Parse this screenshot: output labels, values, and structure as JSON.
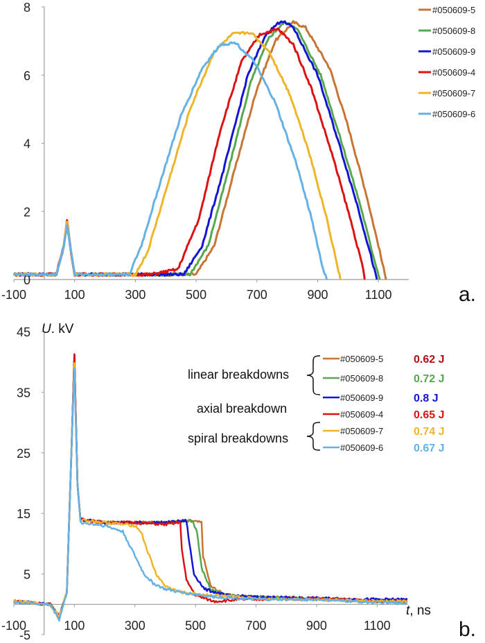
{
  "panel_a": {
    "label": "a.",
    "chart_data": {
      "type": "line",
      "xlabel": "",
      "ylabel": "",
      "xlim": [
        -100,
        1200
      ],
      "ylim": [
        0,
        8
      ],
      "x_ticks": [
        "-100",
        "100",
        "300",
        "500",
        "700",
        "900",
        "1100"
      ],
      "y_ticks": [
        "0",
        "2",
        "4",
        "6",
        "8"
      ],
      "grid": false,
      "legend_position": "right",
      "series": [
        {
          "name": "#050609-5",
          "color": "#c87533",
          "points": [
            [
              -100,
              0.15
            ],
            [
              40,
              0.15
            ],
            [
              65,
              1.0
            ],
            [
              75,
              1.7
            ],
            [
              85,
              1.0
            ],
            [
              100,
              0.15
            ],
            [
              500,
              0.15
            ],
            [
              560,
              1.0
            ],
            [
              620,
              3.0
            ],
            [
              700,
              5.6
            ],
            [
              760,
              7.0
            ],
            [
              820,
              7.55
            ],
            [
              860,
              7.4
            ],
            [
              940,
              6.2
            ],
            [
              1000,
              4.5
            ],
            [
              1060,
              2.5
            ],
            [
              1100,
              1.0
            ],
            [
              1125,
              0.0
            ]
          ]
        },
        {
          "name": "#050609-8",
          "color": "#55a84d",
          "points": [
            [
              -100,
              0.15
            ],
            [
              40,
              0.15
            ],
            [
              65,
              1.0
            ],
            [
              75,
              1.7
            ],
            [
              85,
              1.0
            ],
            [
              100,
              0.15
            ],
            [
              480,
              0.15
            ],
            [
              540,
              1.0
            ],
            [
              600,
              3.0
            ],
            [
              680,
              5.8
            ],
            [
              740,
              7.1
            ],
            [
              790,
              7.55
            ],
            [
              830,
              7.4
            ],
            [
              910,
              6.0
            ],
            [
              980,
              4.0
            ],
            [
              1040,
              2.2
            ],
            [
              1080,
              0.8
            ],
            [
              1105,
              0.0
            ]
          ]
        },
        {
          "name": "#050609-9",
          "color": "#1414d4",
          "points": [
            [
              -100,
              0.15
            ],
            [
              40,
              0.15
            ],
            [
              65,
              1.0
            ],
            [
              75,
              1.7
            ],
            [
              85,
              1.0
            ],
            [
              100,
              0.15
            ],
            [
              460,
              0.15
            ],
            [
              520,
              1.0
            ],
            [
              590,
              3.2
            ],
            [
              670,
              6.0
            ],
            [
              730,
              7.2
            ],
            [
              780,
              7.6
            ],
            [
              820,
              7.4
            ],
            [
              900,
              6.0
            ],
            [
              970,
              4.0
            ],
            [
              1030,
              2.2
            ],
            [
              1075,
              0.7
            ],
            [
              1095,
              0.0
            ]
          ]
        },
        {
          "name": "#050609-4",
          "color": "#dd1111",
          "points": [
            [
              -100,
              0.15
            ],
            [
              40,
              0.15
            ],
            [
              65,
              1.0
            ],
            [
              75,
              1.75
            ],
            [
              85,
              1.0
            ],
            [
              100,
              0.15
            ],
            [
              350,
              0.15
            ],
            [
              440,
              0.3
            ],
            [
              510,
              1.8
            ],
            [
              580,
              4.4
            ],
            [
              650,
              6.4
            ],
            [
              710,
              7.2
            ],
            [
              770,
              7.35
            ],
            [
              820,
              6.9
            ],
            [
              880,
              5.6
            ],
            [
              950,
              3.6
            ],
            [
              1010,
              1.7
            ],
            [
              1050,
              0.3
            ],
            [
              1055,
              0.0
            ]
          ]
        },
        {
          "name": "#050609-7",
          "color": "#f0b428",
          "points": [
            [
              -100,
              0.15
            ],
            [
              40,
              0.15
            ],
            [
              65,
              1.0
            ],
            [
              75,
              1.7
            ],
            [
              85,
              1.0
            ],
            [
              100,
              0.15
            ],
            [
              300,
              0.15
            ],
            [
              340,
              0.8
            ],
            [
              400,
              2.6
            ],
            [
              480,
              5.0
            ],
            [
              560,
              6.7
            ],
            [
              620,
              7.2
            ],
            [
              680,
              7.25
            ],
            [
              740,
              6.7
            ],
            [
              810,
              5.4
            ],
            [
              870,
              3.8
            ],
            [
              930,
              1.8
            ],
            [
              965,
              0.4
            ],
            [
              975,
              0.0
            ]
          ]
        },
        {
          "name": "#050609-6",
          "color": "#64b1e6",
          "points": [
            [
              -100,
              0.15
            ],
            [
              40,
              0.15
            ],
            [
              65,
              1.0
            ],
            [
              75,
              1.6
            ],
            [
              85,
              1.0
            ],
            [
              100,
              0.15
            ],
            [
              280,
              0.15
            ],
            [
              320,
              1.0
            ],
            [
              380,
              2.8
            ],
            [
              450,
              4.8
            ],
            [
              520,
              6.2
            ],
            [
              580,
              6.9
            ],
            [
              630,
              6.95
            ],
            [
              690,
              6.4
            ],
            [
              760,
              5.2
            ],
            [
              830,
              3.4
            ],
            [
              880,
              1.8
            ],
            [
              915,
              0.4
            ],
            [
              930,
              0.0
            ]
          ]
        }
      ]
    }
  },
  "panel_b": {
    "label": "b.",
    "ylabel_var": "U",
    "ylabel_unit": ". kV",
    "xlabel_var": "t",
    "xlabel_unit": ", ns",
    "annotations": {
      "linear": "linear breakdowns",
      "axial": "axial breakdown",
      "spiral": "spiral breakdowns"
    },
    "chart_data": {
      "type": "line",
      "xlim": [
        -100,
        1200
      ],
      "ylim": [
        -5,
        45
      ],
      "x_ticks": [
        "-100",
        "100",
        "300",
        "500",
        "700",
        "900",
        "1100"
      ],
      "y_ticks": [
        "-5",
        "5",
        "15",
        "25",
        "35",
        "45"
      ],
      "grid": false,
      "legend_position": "top-right",
      "series": [
        {
          "name": "#050609-5",
          "energy": "0.62 J",
          "color": "#c87533",
          "energy_color": "#b01010",
          "points": [
            [
              -100,
              0.5
            ],
            [
              20,
              0
            ],
            [
              50,
              -2
            ],
            [
              75,
              2
            ],
            [
              90,
              25
            ],
            [
              100,
              41
            ],
            [
              110,
              20
            ],
            [
              120,
              14
            ],
            [
              200,
              13.5
            ],
            [
              300,
              13.5
            ],
            [
              400,
              13.5
            ],
            [
              480,
              13.8
            ],
            [
              520,
              13.5
            ],
            [
              525,
              8
            ],
            [
              550,
              3
            ],
            [
              600,
              1.5
            ],
            [
              700,
              1.2
            ],
            [
              900,
              1.0
            ],
            [
              1100,
              0.5
            ],
            [
              1200,
              0.5
            ]
          ]
        },
        {
          "name": "#050609-8",
          "energy": "0.72 J",
          "color": "#55a84d",
          "energy_color": "#55a84d",
          "points": [
            [
              -100,
              0.5
            ],
            [
              20,
              0
            ],
            [
              50,
              -2
            ],
            [
              75,
              2
            ],
            [
              90,
              25
            ],
            [
              100,
              41
            ],
            [
              110,
              20
            ],
            [
              120,
              14
            ],
            [
              200,
              13.5
            ],
            [
              300,
              13.5
            ],
            [
              400,
              13.5
            ],
            [
              490,
              13.8
            ],
            [
              505,
              12
            ],
            [
              520,
              6
            ],
            [
              550,
              2.5
            ],
            [
              600,
              1.5
            ],
            [
              700,
              1.2
            ],
            [
              900,
              1.0
            ],
            [
              1100,
              0.5
            ],
            [
              1200,
              0.5
            ]
          ]
        },
        {
          "name": "#050609-9",
          "energy": "0.8 J",
          "color": "#1414d4",
          "energy_color": "#1414d4",
          "points": [
            [
              -100,
              0.5
            ],
            [
              20,
              0
            ],
            [
              50,
              -2
            ],
            [
              75,
              2
            ],
            [
              90,
              25
            ],
            [
              100,
              41
            ],
            [
              110,
              20
            ],
            [
              120,
              14
            ],
            [
              200,
              13.5
            ],
            [
              300,
              13.5
            ],
            [
              400,
              13.5
            ],
            [
              470,
              13.8
            ],
            [
              480,
              10
            ],
            [
              495,
              5
            ],
            [
              530,
              2.5
            ],
            [
              600,
              1.5
            ],
            [
              700,
              1.2
            ],
            [
              900,
              1.0
            ],
            [
              1100,
              0.8
            ],
            [
              1200,
              0.8
            ]
          ]
        },
        {
          "name": "#050609-4",
          "energy": "0.65 J",
          "color": "#dd1111",
          "energy_color": "#dd1111",
          "points": [
            [
              -100,
              0.5
            ],
            [
              20,
              0
            ],
            [
              50,
              -2
            ],
            [
              75,
              2
            ],
            [
              90,
              25
            ],
            [
              100,
              41.5
            ],
            [
              110,
              20
            ],
            [
              120,
              14
            ],
            [
              200,
              13.5
            ],
            [
              300,
              13.5
            ],
            [
              400,
              13.2
            ],
            [
              450,
              13.5
            ],
            [
              455,
              9
            ],
            [
              470,
              4
            ],
            [
              500,
              1.5
            ],
            [
              560,
              0.5
            ],
            [
              650,
              0.8
            ],
            [
              900,
              1.0
            ],
            [
              1100,
              0.5
            ],
            [
              1200,
              0.5
            ]
          ]
        },
        {
          "name": "#050609-7",
          "energy": "0.74 J",
          "color": "#f0b428",
          "energy_color": "#f0b428",
          "points": [
            [
              -100,
              0.5
            ],
            [
              20,
              0
            ],
            [
              50,
              -2
            ],
            [
              75,
              2
            ],
            [
              90,
              25
            ],
            [
              100,
              40
            ],
            [
              110,
              20
            ],
            [
              120,
              14
            ],
            [
              200,
              13.5
            ],
            [
              300,
              13
            ],
            [
              320,
              12
            ],
            [
              340,
              9
            ],
            [
              370,
              5
            ],
            [
              400,
              3
            ],
            [
              450,
              2
            ],
            [
              550,
              1.5
            ],
            [
              700,
              1.0
            ],
            [
              900,
              0.8
            ],
            [
              1100,
              0.5
            ],
            [
              1200,
              0.5
            ]
          ]
        },
        {
          "name": "#050609-6",
          "energy": "0.67 J",
          "color": "#64b1e6",
          "energy_color": "#64b1e6",
          "points": [
            [
              -100,
              0.3
            ],
            [
              20,
              0
            ],
            [
              50,
              -2.5
            ],
            [
              75,
              2
            ],
            [
              90,
              25
            ],
            [
              100,
              39
            ],
            [
              110,
              20
            ],
            [
              120,
              13.5
            ],
            [
              200,
              13
            ],
            [
              260,
              12
            ],
            [
              300,
              8
            ],
            [
              330,
              5
            ],
            [
              360,
              3.5
            ],
            [
              400,
              2.5
            ],
            [
              450,
              2
            ],
            [
              550,
              1.3
            ],
            [
              700,
              0.8
            ],
            [
              900,
              0.8
            ],
            [
              1100,
              0.3
            ],
            [
              1200,
              0.2
            ]
          ]
        }
      ]
    }
  }
}
